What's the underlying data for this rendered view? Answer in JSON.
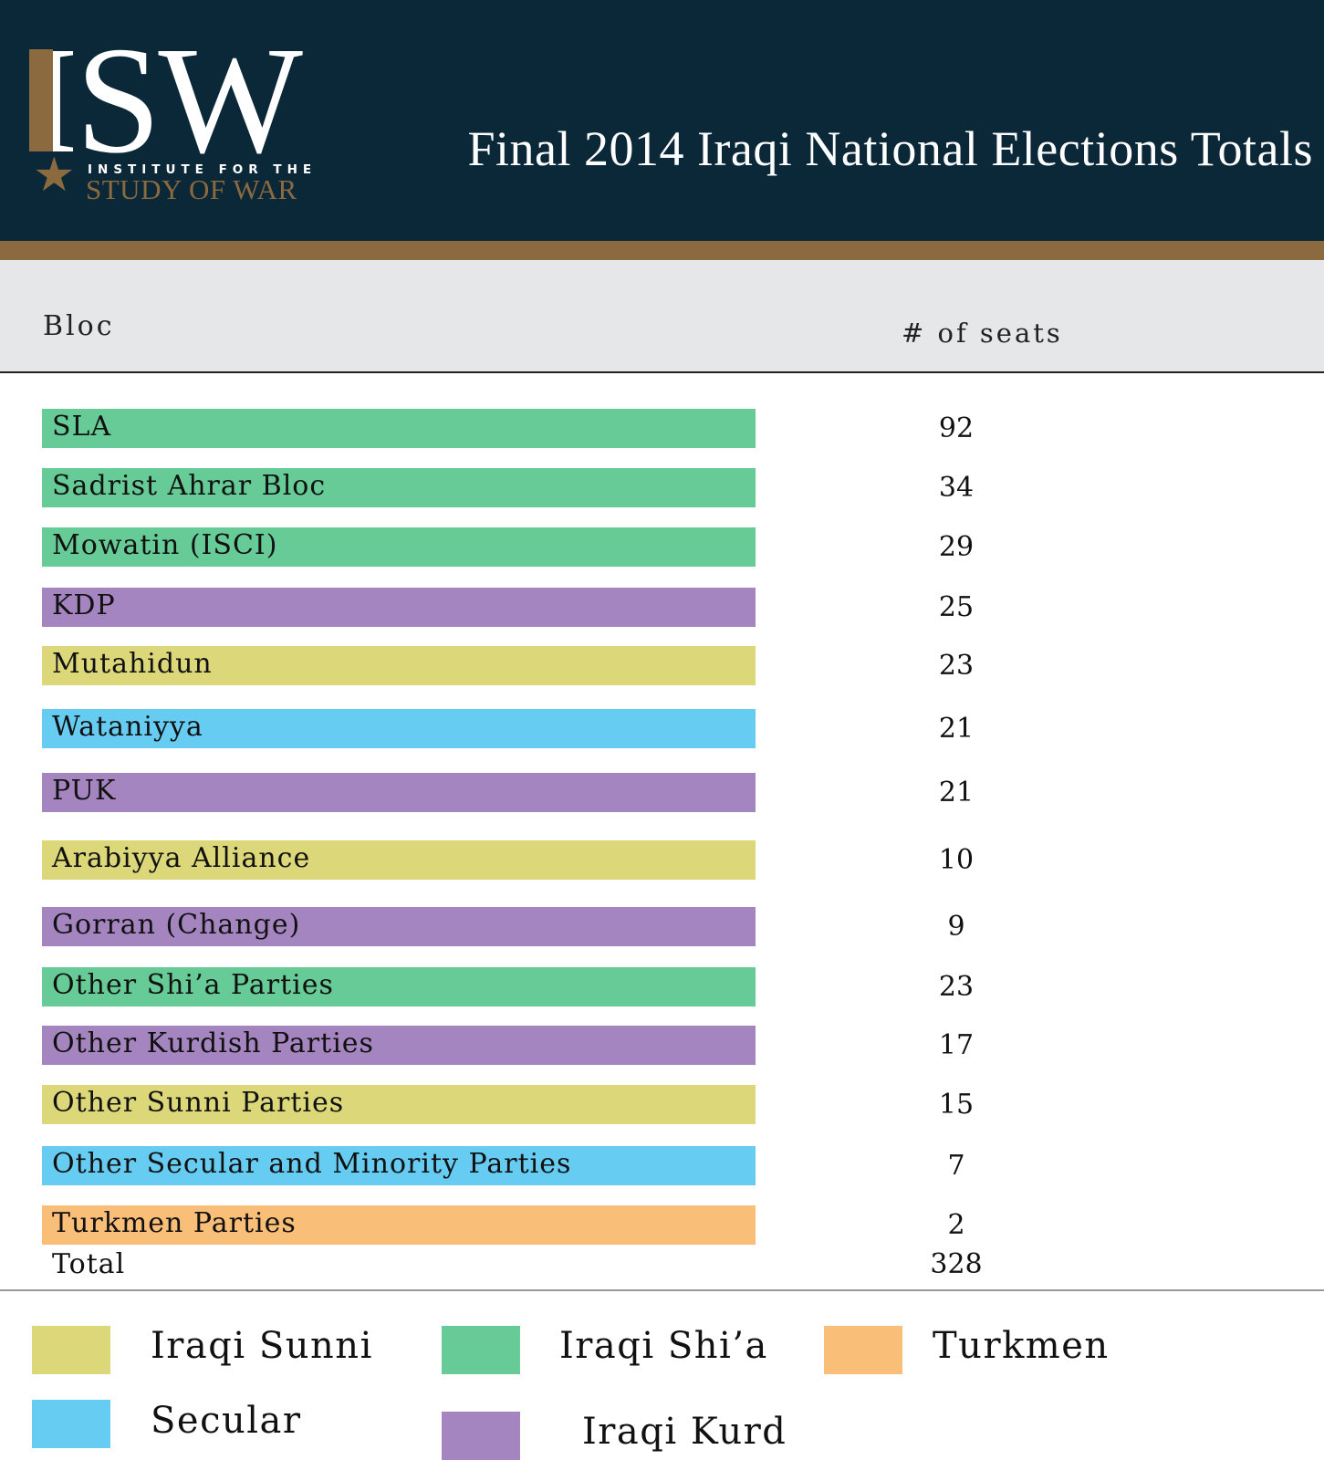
{
  "header": {
    "logo_letters": "ISW",
    "logo_line1": "INSTITUTE FOR THE",
    "logo_line2": "STUDY OF WAR",
    "colors": {
      "navy": "#0b2839",
      "gold": "#8a6a3e"
    }
  },
  "columns": {
    "bloc": "Bloc",
    "seats": "# of seats"
  },
  "chart_data": {
    "type": "table",
    "title": "Final 2014 Iraqi National Elections Totals",
    "rows": [
      {
        "bloc": "SLA",
        "seats": 92,
        "group": "shia"
      },
      {
        "bloc": "Sadrist Ahrar Bloc",
        "seats": 34,
        "group": "shia"
      },
      {
        "bloc": "Mowatin (ISCI)",
        "seats": 29,
        "group": "shia"
      },
      {
        "bloc": "KDP",
        "seats": 25,
        "group": "kurd"
      },
      {
        "bloc": "Mutahidun",
        "seats": 23,
        "group": "sunni"
      },
      {
        "bloc": "Wataniyya",
        "seats": 21,
        "group": "secular"
      },
      {
        "bloc": "PUK",
        "seats": 21,
        "group": "kurd"
      },
      {
        "bloc": "Arabiyya Alliance",
        "seats": 10,
        "group": "sunni"
      },
      {
        "bloc": "Gorran (Change)",
        "seats": 9,
        "group": "kurd"
      },
      {
        "bloc": "Other Shi’a Parties",
        "seats": 23,
        "group": "shia"
      },
      {
        "bloc": "Other Kurdish Parties",
        "seats": 17,
        "group": "kurd"
      },
      {
        "bloc": "Other Sunni Parties",
        "seats": 15,
        "group": "sunni"
      },
      {
        "bloc": "Other Secular and Minority Parties",
        "seats": 7,
        "group": "secular"
      },
      {
        "bloc": "Turkmen Parties",
        "seats": 2,
        "group": "turkmen"
      }
    ],
    "total": {
      "label": "Total",
      "seats": 328
    },
    "groups": {
      "sunni": {
        "name": "Iraqi Sunni",
        "color": "#dcd87a"
      },
      "shia": {
        "name": "Iraqi Shi’a",
        "color": "#66cb96"
      },
      "turkmen": {
        "name": "Turkmen",
        "color": "#f9be78"
      },
      "secular": {
        "name": "Secular",
        "color": "#66ccf2"
      },
      "kurd": {
        "name": "Iraqi Kurd",
        "color": "#a485c0"
      }
    },
    "legend_order": [
      "sunni",
      "shia",
      "turkmen",
      "secular",
      "kurd"
    ],
    "legend_placement": "bottom"
  }
}
